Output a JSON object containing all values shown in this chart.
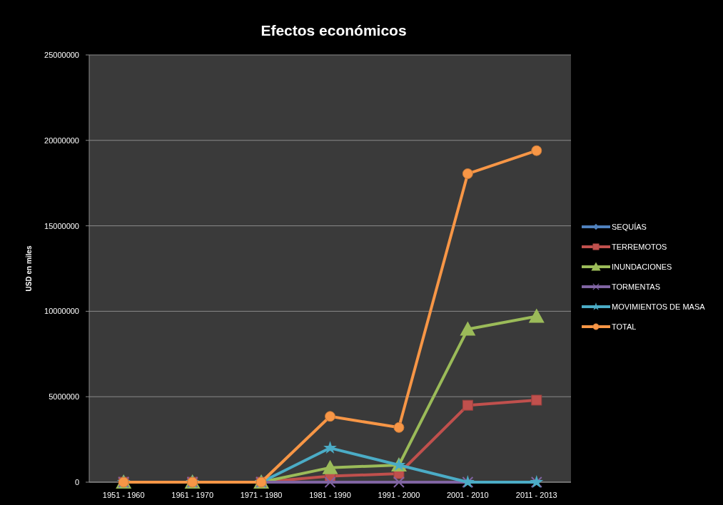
{
  "chart_data": {
    "type": "line",
    "title": "Efectos económicos",
    "ylabel": "USD en miles",
    "categories": [
      "1951 - 1960",
      "1961 - 1970",
      "1971 - 1980",
      "1981 - 1990",
      "1991 - 2000",
      "2001 - 2010",
      "2011 - 2013"
    ],
    "series": [
      {
        "name": "SEQUÍAS",
        "color": "#4f81bd",
        "marker": "diamond",
        "values": [
          null,
          null,
          null,
          null,
          null,
          null,
          null
        ]
      },
      {
        "name": "TERREMOTOS",
        "color": "#c0504d",
        "marker": "square",
        "values": [
          0,
          0,
          0,
          350000,
          500000,
          4500000,
          4800000
        ]
      },
      {
        "name": "INUNDACIONES",
        "color": "#9bbb59",
        "marker": "triangle",
        "values": [
          0,
          0,
          0,
          850000,
          1000000,
          8950000,
          9700000
        ]
      },
      {
        "name": "TORMENTAS",
        "color": "#8064a2",
        "marker": "cross",
        "values": [
          0,
          0,
          0,
          0,
          0,
          0,
          0
        ]
      },
      {
        "name": "MOVIMIENTOS DE MASA",
        "color": "#4bacc6",
        "marker": "star",
        "values": [
          0,
          0,
          0,
          2000000,
          1000000,
          0,
          0
        ]
      },
      {
        "name": "TOTAL",
        "color": "#f79646",
        "marker": "circle",
        "values": [
          0,
          0,
          0,
          3850000,
          3200000,
          18050000,
          19400000
        ]
      }
    ],
    "ylim": [
      0,
      25000000
    ],
    "yticks": [
      0,
      5000000,
      10000000,
      15000000,
      20000000,
      25000000
    ],
    "grid": "y",
    "legend": "right"
  }
}
